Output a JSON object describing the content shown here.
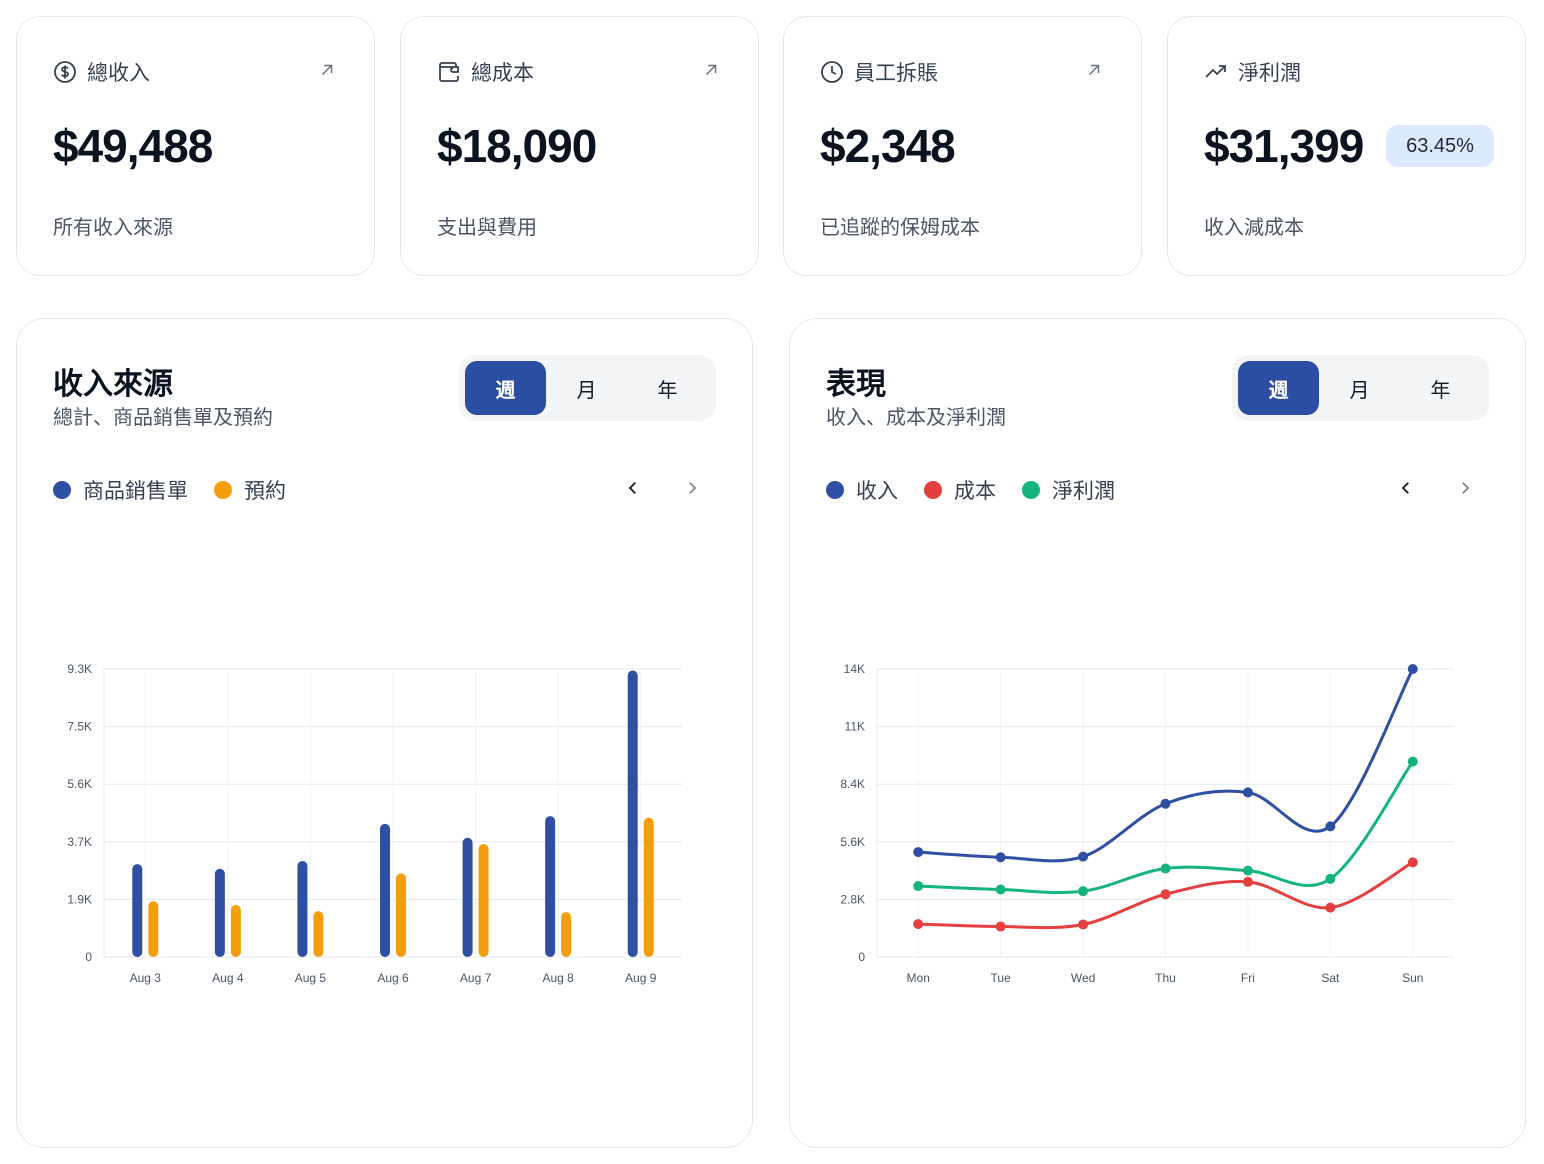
{
  "stats": [
    {
      "title": "總收入",
      "value": "$49,488",
      "sub": "所有收入來源",
      "icon": "dollar-circle-icon"
    },
    {
      "title": "總成本",
      "value": "$18,090",
      "sub": "支出與費用",
      "icon": "wallet-icon"
    },
    {
      "title": "員工拆賬",
      "value": "$2,348",
      "sub": "已追蹤的保姆成本",
      "icon": "clock-icon"
    },
    {
      "title": "淨利潤",
      "value": "$31,399",
      "sub": "收入減成本",
      "icon": "trending-up-icon",
      "badge": "63.45%"
    }
  ],
  "revenue_panel": {
    "title": "收入來源",
    "subtitle": "總計、商品銷售單及預約",
    "tabs": [
      "週",
      "月",
      "年"
    ],
    "active_tab": "週",
    "legend": [
      "商品銷售單",
      "預約"
    ]
  },
  "performance_panel": {
    "title": "表現",
    "subtitle": "收入、成本及淨利潤",
    "tabs": [
      "週",
      "月",
      "年"
    ],
    "active_tab": "週",
    "legend": [
      "收入",
      "成本",
      "淨利潤"
    ]
  },
  "colors": {
    "blue": "#2f4fa2",
    "orange": "#f59e0b",
    "red": "#e5403f",
    "green": "#14b47c"
  },
  "chart_data": [
    {
      "type": "bar",
      "categories": [
        "Aug 3",
        "Aug 4",
        "Aug 5",
        "Aug 6",
        "Aug 7",
        "Aug 8",
        "Aug 9"
      ],
      "series": [
        {
          "name": "商品銷售單",
          "values": [
            3000,
            2850,
            3100,
            4300,
            3850,
            4550,
            9250
          ]
        },
        {
          "name": "預約",
          "values": [
            1800,
            1680,
            1480,
            2700,
            3650,
            1450,
            4500
          ]
        }
      ],
      "yticks": [
        "0",
        "1.9K",
        "3.7K",
        "5.6K",
        "7.5K",
        "9.3K"
      ],
      "ylim": [
        0,
        9300
      ],
      "grid": true
    },
    {
      "type": "line",
      "categories": [
        "Mon",
        "Tue",
        "Wed",
        "Thu",
        "Fri",
        "Sat",
        "Sun"
      ],
      "series": [
        {
          "name": "收入",
          "values": [
            5100,
            4850,
            4880,
            7450,
            8000,
            6350,
            14000
          ]
        },
        {
          "name": "成本",
          "values": [
            1600,
            1480,
            1580,
            3050,
            3650,
            2400,
            4600
          ]
        },
        {
          "name": "淨利潤",
          "values": [
            3450,
            3280,
            3200,
            4300,
            4200,
            3800,
            9500
          ]
        }
      ],
      "yticks": [
        "0",
        "2.8K",
        "5.6K",
        "8.4K",
        "11K",
        "14K"
      ],
      "ylim": [
        0,
        14000
      ],
      "grid": true
    }
  ]
}
